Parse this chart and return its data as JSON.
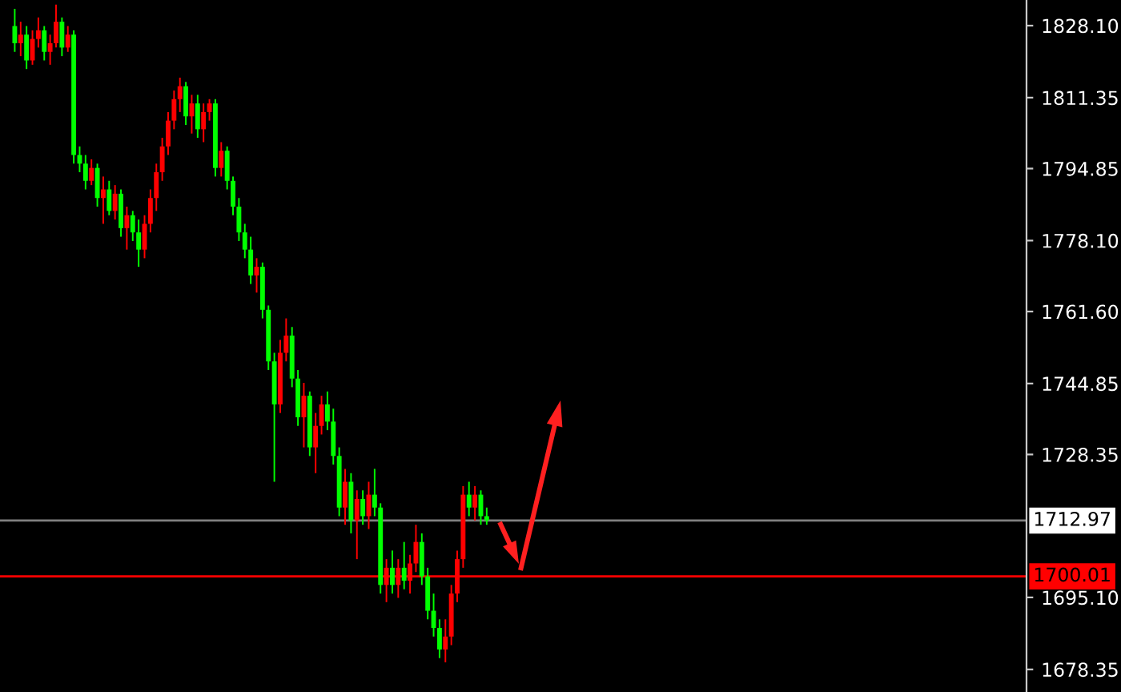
{
  "chart_data": {
    "type": "candlestick",
    "categories": [
      null,
      null,
      null,
      null,
      null,
      null,
      null,
      null,
      null,
      null,
      null,
      null,
      null,
      null,
      null,
      null,
      null,
      null,
      null,
      null,
      null,
      null,
      null,
      null,
      null,
      null,
      null,
      null,
      null,
      null,
      null,
      null,
      null,
      null,
      null,
      null,
      null,
      null,
      null,
      null,
      null,
      null,
      null,
      null,
      null,
      null,
      null,
      null,
      null,
      null,
      null,
      null,
      null,
      null,
      null,
      null,
      null,
      null,
      null,
      null,
      null,
      null,
      null,
      null,
      null,
      null,
      null,
      null,
      null,
      null,
      null,
      null,
      null,
      null,
      null,
      null,
      null,
      null,
      null,
      null,
      null,
      null,
      null,
      null,
      null,
      null,
      null,
      null,
      null,
      null,
      null,
      null,
      null,
      null,
      null,
      null,
      null,
      null,
      null,
      null,
      null,
      null,
      null,
      null,
      null,
      null,
      null,
      null,
      null,
      null,
      null,
      null,
      null,
      null,
      null,
      null,
      null,
      null,
      null,
      null,
      null,
      null,
      null,
      null,
      null,
      null,
      null,
      null,
      null,
      null,
      null,
      null,
      null,
      null,
      null,
      null,
      null,
      null,
      null,
      null,
      null,
      null,
      null,
      null,
      null,
      null,
      null,
      null,
      null,
      null,
      null,
      null,
      null,
      null,
      null,
      null,
      null,
      null,
      null,
      null,
      null,
      null,
      null,
      null,
      null,
      null,
      null,
      null,
      null,
      null,
      null,
      null,
      null,
      null
    ],
    "colors": [
      null,
      null,
      "#00ff00",
      "#ff0000",
      "#00ff00",
      "#ff0000",
      "#ff0000",
      "#00ff00",
      "#ff0000",
      "#ff0000",
      "#00ff00",
      "#ff0000",
      "#00ff00",
      "#00ff00",
      "#00ff00",
      "#ff0000",
      "#00ff00",
      "#ff0000",
      "#00ff00",
      "#ff0000",
      "#00ff00",
      "#ff0000",
      "#00ff00",
      "#00ff00",
      "#ff0000",
      "#ff0000",
      "#ff0000",
      "#ff0000",
      "#ff0000",
      "#ff0000",
      "#ff0000",
      "#00ff00",
      "#ff0000",
      "#00ff00",
      "#ff0000",
      "#ff0000",
      "#00ff00",
      "#ff0000",
      "#00ff00",
      "#00ff00",
      "#00ff00",
      "#00ff00",
      "#00ff00",
      "#ff0000",
      "#00ff00",
      "#00ff00",
      "#00ff00",
      "#ff0000",
      "#ff0000",
      "#00ff00",
      "#00ff00",
      "#ff0000",
      "#00ff00",
      "#ff0000",
      "#ff0000",
      "#00ff00",
      "#00ff00",
      "#00ff00",
      "#ff0000",
      "#00ff00",
      "#ff0000",
      "#00ff00",
      "#ff0000",
      "#00ff00",
      "#00ff00",
      "#ff0000",
      "#00ff00",
      "#ff0000",
      "#00ff00",
      "#ff0000",
      "#ff0000",
      "#00ff00",
      "#00ff00",
      "#00ff00",
      "#00ff00",
      "#ff0000",
      "#ff0000",
      "#ff0000",
      "#ff0000",
      "#00ff00",
      "#ff0000",
      "#00ff00",
      "#00ff00",
      null,
      null,
      null,
      null,
      null,
      null,
      null,
      null,
      null,
      null,
      null,
      null,
      null,
      null,
      null,
      null,
      null,
      null,
      null,
      null,
      null,
      null,
      null,
      null,
      null,
      null,
      null,
      null,
      null,
      null,
      null,
      null,
      null,
      null,
      null,
      null,
      null,
      null,
      null,
      null,
      null,
      null,
      null,
      null,
      null,
      null,
      null,
      null,
      null,
      null,
      null,
      null,
      null,
      null,
      null,
      null,
      null,
      null,
      null,
      null,
      null,
      null,
      null,
      null,
      null,
      null,
      null,
      null,
      null,
      null,
      null,
      null,
      null,
      null,
      null,
      null,
      null,
      null,
      null,
      null,
      null,
      null,
      null,
      null,
      null,
      null,
      null,
      null,
      null,
      null,
      null
    ],
    "ohlc": [
      null,
      null,
      [
        1828,
        1832,
        1822,
        1824
      ],
      [
        1824,
        1829,
        1821,
        1826
      ],
      [
        1826,
        1828,
        1818,
        1820
      ],
      [
        1820,
        1827,
        1819,
        1825
      ],
      [
        1825,
        1830,
        1823,
        1827
      ],
      [
        1827,
        1828,
        1820,
        1822
      ],
      [
        1822,
        1826,
        1819,
        1824
      ],
      [
        1824,
        1833,
        1823,
        1829
      ],
      [
        1829,
        1830,
        1821,
        1823
      ],
      [
        1823,
        1828,
        1822,
        1826
      ],
      [
        1826,
        1827,
        1796,
        1798
      ],
      [
        1798,
        1800,
        1794,
        1796
      ],
      [
        1796,
        1798,
        1790,
        1792
      ],
      [
        1792,
        1797,
        1791,
        1795
      ],
      [
        1795,
        1796,
        1786,
        1788
      ],
      [
        1788,
        1793,
        1782,
        1790
      ],
      [
        1790,
        1792,
        1784,
        1785
      ],
      [
        1785,
        1791,
        1783,
        1789
      ],
      [
        1789,
        1790,
        1779,
        1781
      ],
      [
        1781,
        1786,
        1776,
        1784
      ],
      [
        1784,
        1785,
        1778,
        1780
      ],
      [
        1780,
        1783,
        1772,
        1776
      ],
      [
        1776,
        1784,
        1774,
        1782
      ],
      [
        1782,
        1790,
        1780,
        1788
      ],
      [
        1788,
        1796,
        1785,
        1794
      ],
      [
        1794,
        1802,
        1792,
        1800
      ],
      [
        1800,
        1808,
        1798,
        1806
      ],
      [
        1806,
        1813,
        1804,
        1811
      ],
      [
        1811,
        1816,
        1808,
        1814
      ],
      [
        1814,
        1815,
        1805,
        1807
      ],
      [
        1807,
        1812,
        1803,
        1810
      ],
      [
        1810,
        1812,
        1802,
        1804
      ],
      [
        1804,
        1810,
        1801,
        1808
      ],
      [
        1808,
        1811,
        1806,
        1810
      ],
      [
        1810,
        1811,
        1793,
        1795
      ],
      [
        1795,
        1801,
        1793,
        1799
      ],
      [
        1799,
        1800,
        1790,
        1792
      ],
      [
        1792,
        1793,
        1784,
        1786
      ],
      [
        1786,
        1788,
        1778,
        1780
      ],
      [
        1780,
        1782,
        1774,
        1776
      ],
      [
        1776,
        1779,
        1768,
        1770
      ],
      [
        1770,
        1774,
        1766,
        1772
      ],
      [
        1772,
        1773,
        1760,
        1762
      ],
      [
        1762,
        1763,
        1748,
        1750
      ],
      [
        1750,
        1752,
        1722,
        1740
      ],
      [
        1740,
        1755,
        1738,
        1752
      ],
      [
        1752,
        1760,
        1750,
        1756
      ],
      [
        1756,
        1758,
        1744,
        1746
      ],
      [
        1746,
        1748,
        1735,
        1737
      ],
      [
        1737,
        1745,
        1730,
        1742
      ],
      [
        1742,
        1743,
        1728,
        1730
      ],
      [
        1730,
        1738,
        1724,
        1735
      ],
      [
        1735,
        1742,
        1733,
        1740
      ],
      [
        1740,
        1743,
        1734,
        1736
      ],
      [
        1736,
        1739,
        1726,
        1728
      ],
      [
        1728,
        1730,
        1714,
        1716
      ],
      [
        1716,
        1725,
        1712,
        1722
      ],
      [
        1722,
        1724,
        1710,
        1713
      ],
      [
        1713,
        1720,
        1704,
        1718
      ],
      [
        1718,
        1720,
        1712,
        1714
      ],
      [
        1714,
        1722,
        1711,
        1719
      ],
      [
        1719,
        1725,
        1714,
        1716
      ],
      [
        1716,
        1717,
        1696,
        1698
      ],
      [
        1698,
        1704,
        1694,
        1702
      ],
      [
        1702,
        1706,
        1696,
        1698
      ],
      [
        1698,
        1704,
        1695,
        1702
      ],
      [
        1702,
        1708,
        1697,
        1699
      ],
      [
        1699,
        1705,
        1696,
        1703
      ],
      [
        1703,
        1712,
        1701,
        1708
      ],
      [
        1708,
        1710,
        1698,
        1700
      ],
      [
        1700,
        1702,
        1690,
        1692
      ],
      [
        1692,
        1696,
        1686,
        1688
      ],
      [
        1688,
        1690,
        1681,
        1683
      ],
      [
        1683,
        1690,
        1680,
        1686
      ],
      [
        1686,
        1698,
        1684,
        1696
      ],
      [
        1696,
        1706,
        1694,
        1704
      ],
      [
        1704,
        1721,
        1702,
        1719
      ],
      [
        1719,
        1722,
        1714,
        1716
      ],
      [
        1716,
        1721,
        1713,
        1719
      ],
      [
        1719,
        1720,
        1712,
        1714
      ],
      [
        1714,
        1716,
        1712,
        1713
      ],
      null,
      null,
      null,
      null,
      null,
      null,
      null,
      null,
      null,
      null,
      null,
      null,
      null,
      null,
      null,
      null,
      null,
      null,
      null,
      null,
      null,
      null,
      null,
      null,
      null,
      null,
      null,
      null,
      null,
      null,
      null,
      null,
      null,
      null,
      null,
      null,
      null,
      null,
      null,
      null,
      null,
      null,
      null,
      null,
      null,
      null,
      null,
      null,
      null,
      null,
      null,
      null,
      null,
      null,
      null,
      null,
      null,
      null,
      null,
      null,
      null,
      null,
      null,
      null,
      null,
      null,
      null,
      null,
      null,
      null,
      null,
      null,
      null,
      null,
      null,
      null,
      null,
      null,
      null,
      null,
      null,
      null,
      null,
      null,
      null,
      null,
      null,
      null,
      null,
      null,
      null
    ],
    "ylim": [
      1673.1,
      1834.06
    ],
    "yticks": [
      {
        "value": 1828.1,
        "label": "1828.10"
      },
      {
        "value": 1811.35,
        "label": "1811.35"
      },
      {
        "value": 1794.85,
        "label": "1794.85"
      },
      {
        "value": 1778.1,
        "label": "1778.10"
      },
      {
        "value": 1761.6,
        "label": "1761.60"
      },
      {
        "value": 1744.85,
        "label": "1744.85"
      },
      {
        "value": 1728.35,
        "label": "1728.35"
      },
      {
        "value": 1695.1,
        "label": "1695.10"
      },
      {
        "value": 1678.35,
        "label": "1678.35"
      }
    ],
    "ref_lines": [
      {
        "axis": "y",
        "value": 1712.97,
        "label": "1712.97",
        "color": "#808080"
      },
      {
        "axis": "y",
        "value": 1700.01,
        "label": "1700.01",
        "color": "#ff0000"
      }
    ],
    "grid": false,
    "tick_labels": "y"
  }
}
